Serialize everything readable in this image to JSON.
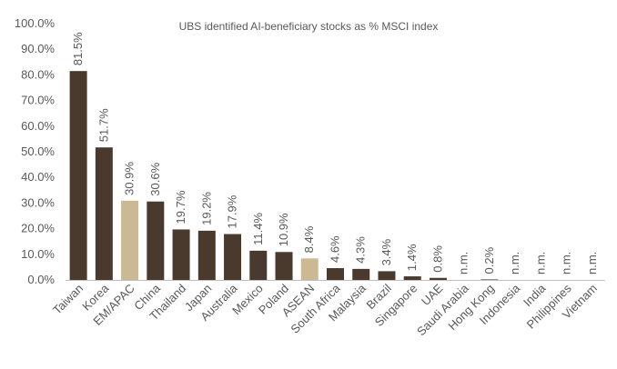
{
  "chart_data": {
    "type": "bar",
    "title": "UBS identified AI-beneficiary stocks as % MSCI index",
    "xlabel": "",
    "ylabel": "",
    "ylim": [
      0,
      100
    ],
    "yticks": [
      "0.0%",
      "10.0%",
      "20.0%",
      "30.0%",
      "40.0%",
      "50.0%",
      "60.0%",
      "70.0%",
      "80.0%",
      "90.0%",
      "100.0%"
    ],
    "grid": false,
    "legend": "none",
    "categories": [
      "Taiwan",
      "Korea",
      "EM/APAC",
      "China",
      "Thailand",
      "Japan",
      "Australia",
      "Mexico",
      "Poland",
      "ASEAN",
      "South Africa",
      "Malaysia",
      "Brazil",
      "Singapore",
      "UAE",
      "Saudi Arabia",
      "Hong Kong",
      "Indonesia",
      "India",
      "Philippines",
      "Vietnam"
    ],
    "values": [
      81.5,
      51.7,
      30.9,
      30.6,
      19.7,
      19.2,
      17.9,
      11.4,
      10.9,
      8.4,
      4.6,
      4.3,
      3.4,
      1.4,
      0.8,
      null,
      0.2,
      null,
      null,
      null,
      null
    ],
    "data_labels": [
      "81.5%",
      "51.7%",
      "30.9%",
      "30.6%",
      "19.7%",
      "19.2%",
      "17.9%",
      "11.4%",
      "10.9%",
      "8.4%",
      "4.6%",
      "4.3%",
      "3.4%",
      "1.4%",
      "0.8%",
      "n.m.",
      "0.2%",
      "n.m.",
      "n.m.",
      "n.m.",
      "n.m."
    ],
    "highlight": [
      "EM/APAC",
      "ASEAN"
    ],
    "colors": {
      "bar": "#4a3a2e",
      "highlight": "#cbb994",
      "text": "#595959",
      "axis": "#bfbfbf"
    }
  }
}
